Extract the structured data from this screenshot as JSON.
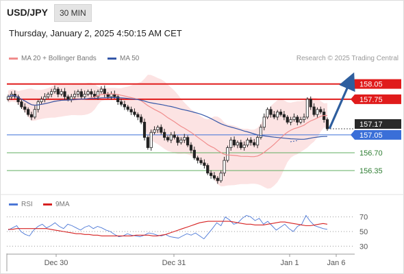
{
  "header": {
    "symbol": "USD/JPY",
    "timeframe": "30 MIN"
  },
  "datetime": "Thursday, January 2, 2025 4:50:15 AM CET",
  "legend": {
    "ma20": {
      "label": "MA 20 + Bollinger Bands",
      "color": "#f08c8c"
    },
    "ma50": {
      "label": "MA 50",
      "color": "#3557a8"
    },
    "rsi": {
      "label": "RSI",
      "color": "#4b77d6"
    },
    "ma9": {
      "label": "9MA",
      "color": "#d62020"
    }
  },
  "copyright": "Research © 2025 Trading Central",
  "chart_data": [
    {
      "type": "candlestick",
      "title": "USD/JPY",
      "ylim": [
        156.0,
        158.3
      ],
      "x_ticks": [
        "Dec 30",
        "Dec 31",
        "Jan 1",
        "Jan 6"
      ],
      "close_series": [
        157.8,
        157.85,
        157.8,
        157.7,
        157.6,
        157.55,
        157.45,
        157.4,
        157.55,
        157.7,
        157.75,
        157.8,
        157.85,
        157.9,
        157.95,
        157.85,
        157.9,
        157.8,
        157.75,
        157.8,
        157.85,
        157.9,
        157.8,
        157.85,
        157.9,
        157.85,
        157.8,
        157.9,
        157.95,
        157.85,
        157.8,
        157.85,
        157.8,
        157.7,
        157.65,
        157.6,
        157.55,
        157.5,
        157.45,
        157.4,
        157.3,
        157.0,
        156.8,
        157.1,
        157.15,
        157.2,
        157.1,
        157.0,
        156.95,
        157.05,
        157.0,
        156.9,
        156.95,
        157.0,
        156.85,
        156.75,
        156.6,
        156.55,
        156.5,
        156.45,
        156.3,
        156.25,
        156.2,
        156.15,
        156.3,
        156.55,
        156.8,
        156.95,
        156.85,
        156.9,
        156.8,
        156.85,
        156.95,
        156.9,
        156.85,
        157.0,
        157.2,
        157.4,
        157.55,
        157.45,
        157.4,
        157.5,
        157.45,
        157.4,
        157.3,
        157.35,
        157.4,
        157.3,
        157.35,
        157.4,
        157.75,
        157.6,
        157.45,
        157.55,
        157.5,
        157.35,
        157.17
      ],
      "levels": [
        {
          "value": "158.05",
          "kind": "resistance"
        },
        {
          "value": "157.75",
          "kind": "resistance"
        },
        {
          "value": "157.17",
          "kind": "last"
        },
        {
          "value": "157.05",
          "kind": "pivot"
        },
        {
          "value": "156.70",
          "kind": "support"
        },
        {
          "value": "156.35",
          "kind": "support"
        }
      ]
    },
    {
      "type": "line",
      "title": "RSI",
      "ylim": [
        20,
        80
      ],
      "y_ticks": [
        "70",
        "50",
        "30"
      ],
      "series": [
        {
          "name": "RSI",
          "values": [
            52,
            55,
            58,
            50,
            46,
            44,
            52,
            57,
            60,
            55,
            58,
            62,
            57,
            54,
            60,
            58,
            55,
            52,
            56,
            58,
            54,
            57,
            55,
            52,
            50,
            46,
            43,
            44,
            47,
            45,
            44,
            43,
            45,
            48,
            47,
            45,
            44,
            46,
            43,
            42,
            41,
            44,
            47,
            45,
            48,
            44,
            40,
            47,
            54,
            62,
            58,
            70,
            66,
            60,
            62,
            68,
            72,
            70,
            65,
            68,
            60,
            64,
            58,
            52,
            56,
            60,
            54,
            50,
            57,
            60,
            72,
            64,
            58,
            56,
            54,
            53
          ]
        },
        {
          "name": "9MA",
          "values": [
            53,
            53,
            54,
            54,
            54,
            54,
            54,
            54,
            54,
            54,
            53,
            52,
            51,
            50,
            49,
            48,
            47,
            47,
            46,
            46,
            45,
            45,
            44,
            44,
            44,
            44,
            44,
            44,
            44,
            44,
            45,
            45,
            45,
            45,
            44,
            44,
            45,
            46,
            48,
            50,
            52,
            54,
            56,
            58,
            60,
            62,
            63,
            64,
            64,
            64,
            64,
            64,
            64,
            63,
            62,
            61,
            60,
            60,
            59,
            59,
            59,
            60,
            61,
            62,
            63,
            63,
            62,
            61,
            60,
            59,
            58,
            58,
            59,
            60,
            61,
            60
          ]
        }
      ]
    }
  ]
}
